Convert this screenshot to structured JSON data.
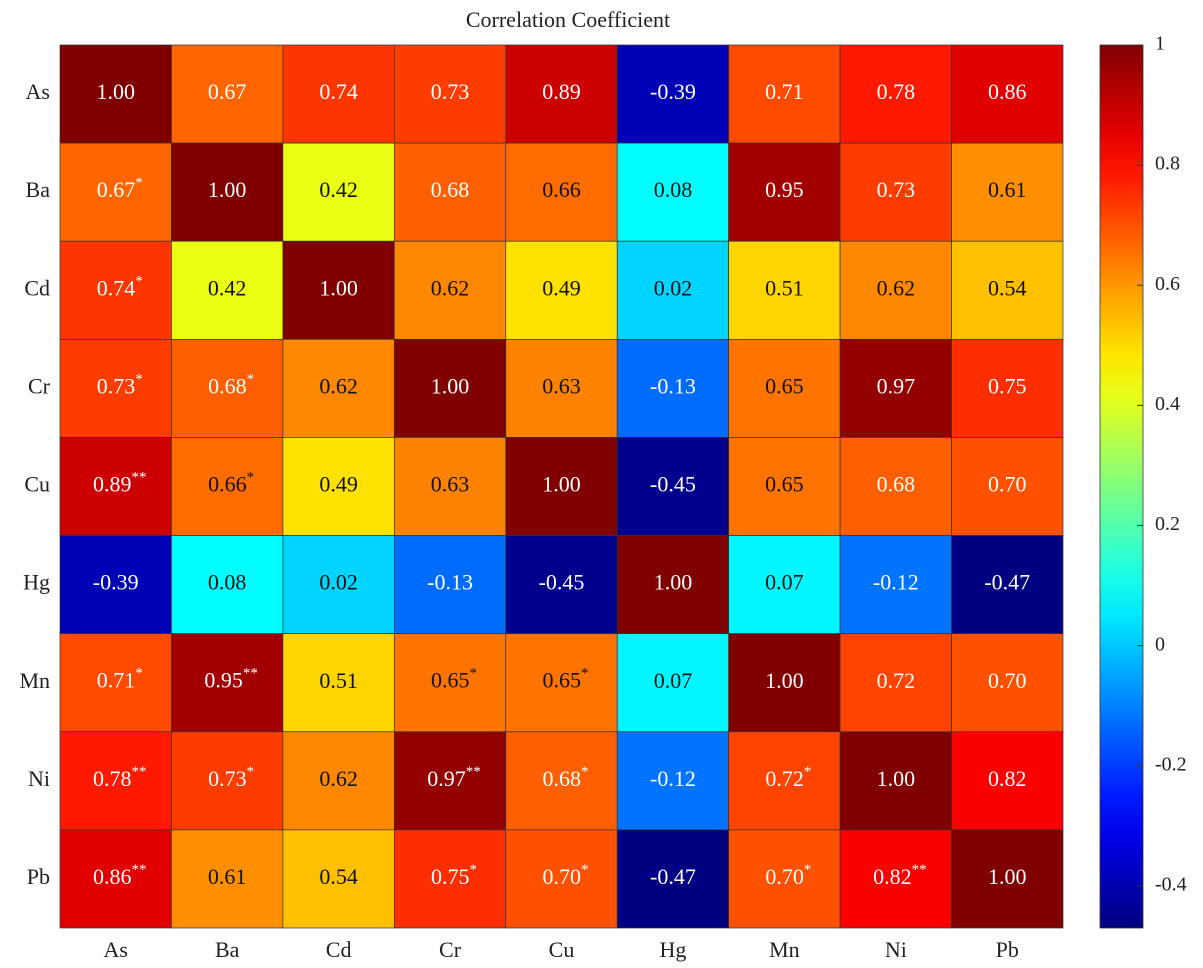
{
  "chart_data": {
    "type": "heatmap",
    "title": "Correlation Coefficient",
    "colormap": "jet",
    "x_categories": [
      "As",
      "Ba",
      "Cd",
      "Cr",
      "Cu",
      "Hg",
      "Mn",
      "Ni",
      "Pb"
    ],
    "y_categories": [
      "As",
      "Ba",
      "Cd",
      "Cr",
      "Cu",
      "Hg",
      "Mn",
      "Ni",
      "Pb"
    ],
    "values": [
      [
        1,
        0.67,
        0.74,
        0.73,
        0.89,
        -0.39,
        0.71,
        0.78,
        0.86
      ],
      [
        0.67,
        1,
        0.42,
        0.68,
        0.66,
        0.08,
        0.95,
        0.73,
        0.61
      ],
      [
        0.74,
        0.42,
        1,
        0.62,
        0.49,
        0.02,
        0.51,
        0.62,
        0.54
      ],
      [
        0.73,
        0.68,
        0.62,
        1,
        0.63,
        -0.13,
        0.65,
        0.97,
        0.75
      ],
      [
        0.89,
        0.66,
        0.49,
        0.63,
        1,
        -0.45,
        0.65,
        0.68,
        0.7
      ],
      [
        -0.39,
        0.08,
        0.02,
        -0.13,
        -0.45,
        1,
        0.07,
        -0.12,
        -0.47
      ],
      [
        0.71,
        0.95,
        0.51,
        0.65,
        0.65,
        0.07,
        1,
        0.72,
        0.7
      ],
      [
        0.78,
        0.73,
        0.62,
        0.97,
        0.68,
        -0.12,
        0.72,
        1,
        0.82
      ],
      [
        0.86,
        0.61,
        0.54,
        0.75,
        0.7,
        -0.47,
        0.7,
        0.82,
        1
      ]
    ],
    "value_labels": [
      [
        "1.00",
        "0.67",
        "0.74",
        "0.73",
        "0.89",
        "-0.39",
        "0.71",
        "0.78",
        "0.86"
      ],
      [
        "0.67*",
        "1.00",
        "0.42",
        "0.68",
        "0.66",
        "0.08",
        "0.95",
        "0.73",
        "0.61"
      ],
      [
        "0.74*",
        "0.42",
        "1.00",
        "0.62",
        "0.49",
        "0.02",
        "0.51",
        "0.62",
        "0.54"
      ],
      [
        "0.73*",
        "0.68*",
        "0.62",
        "1.00",
        "0.63",
        "-0.13",
        "0.65",
        "0.97",
        "0.75"
      ],
      [
        "0.89**",
        "0.66*",
        "0.49",
        "0.63",
        "1.00",
        "-0.45",
        "0.65",
        "0.68",
        "0.70"
      ],
      [
        "-0.39",
        "0.08",
        "0.02",
        "-0.13",
        "-0.45",
        "1.00",
        "0.07",
        "-0.12",
        "-0.47"
      ],
      [
        "0.71*",
        "0.95**",
        "0.51",
        "0.65*",
        "0.65*",
        "0.07",
        "1.00",
        "0.72",
        "0.70"
      ],
      [
        "0.78**",
        "0.73*",
        "0.62",
        "0.97**",
        "0.68*",
        "-0.12",
        "0.72*",
        "1.00",
        "0.82"
      ],
      [
        "0.86**",
        "0.61",
        "0.54",
        "0.75*",
        "0.70*",
        "-0.47",
        "0.70*",
        "0.82**",
        "1.00"
      ]
    ],
    "clim": [
      -0.47,
      1
    ],
    "cticks": [
      -0.4,
      -0.2,
      0,
      0.2,
      0.4,
      0.6,
      0.8,
      1
    ]
  }
}
